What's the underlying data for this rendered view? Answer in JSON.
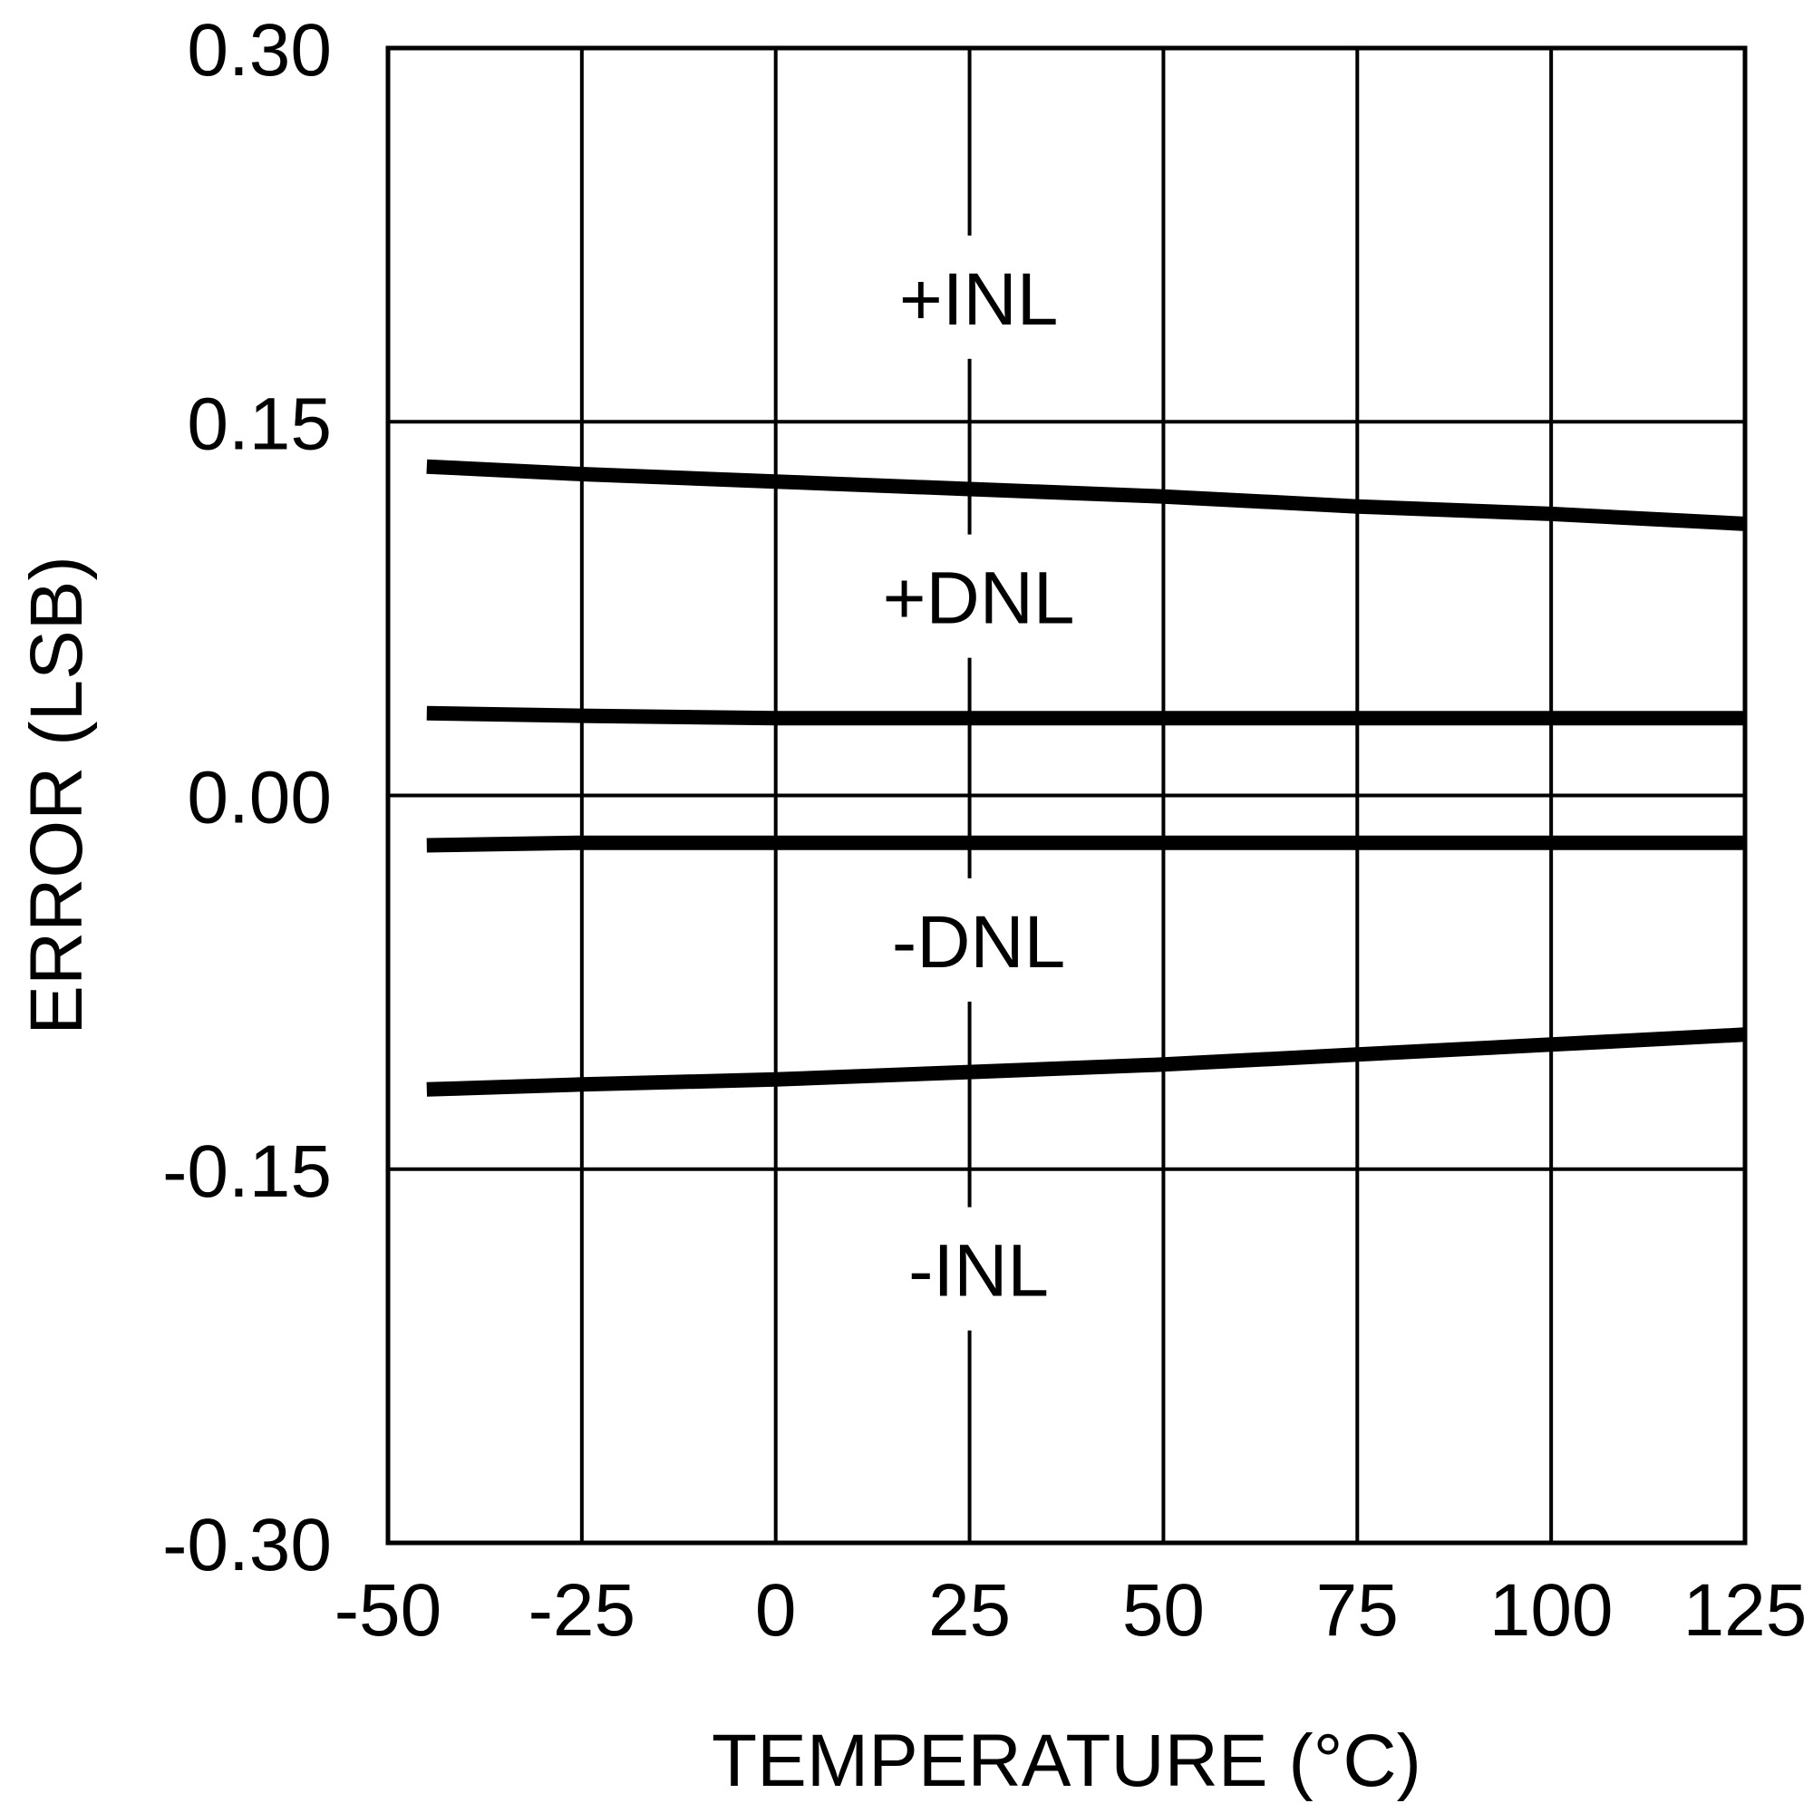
{
  "chart_data": {
    "type": "line",
    "title": "",
    "xlabel": "TEMPERATURE (°C)",
    "ylabel": "ERROR (LSB)",
    "xlim": [
      -50,
      125
    ],
    "ylim": [
      -0.3,
      0.3
    ],
    "x_ticks": [
      -50,
      -25,
      0,
      25,
      50,
      75,
      100,
      125
    ],
    "x_tick_labels": [
      "-50",
      "-25",
      "0",
      "25",
      "50",
      "75",
      "100",
      "125"
    ],
    "y_ticks": [
      0.3,
      0.15,
      0.0,
      -0.15,
      -0.3
    ],
    "y_tick_labels": [
      "0.30",
      "0.15",
      "0.00",
      "-0.15",
      "-0.30"
    ],
    "grid": true,
    "legend": "none",
    "series": [
      {
        "name": "+INL",
        "x": [
          -45,
          -25,
          0,
          25,
          50,
          75,
          100,
          125
        ],
        "y": [
          0.132,
          0.129,
          0.126,
          0.123,
          0.12,
          0.116,
          0.113,
          0.109
        ]
      },
      {
        "name": "+DNL",
        "x": [
          -45,
          -25,
          0,
          25,
          50,
          75,
          100,
          125
        ],
        "y": [
          0.033,
          0.032,
          0.031,
          0.031,
          0.031,
          0.031,
          0.031,
          0.031
        ]
      },
      {
        "name": "-DNL",
        "x": [
          -45,
          -25,
          0,
          25,
          50,
          75,
          100,
          125
        ],
        "y": [
          -0.02,
          -0.019,
          -0.019,
          -0.019,
          -0.019,
          -0.019,
          -0.019,
          -0.019
        ]
      },
      {
        "name": "-INL",
        "x": [
          -45,
          -25,
          0,
          25,
          50,
          75,
          100,
          125
        ],
        "y": [
          -0.118,
          -0.116,
          -0.114,
          -0.111,
          -0.108,
          -0.104,
          -0.1,
          -0.096
        ]
      }
    ],
    "annotations": [
      {
        "text": "+INL",
        "x": 25,
        "y": 0.2
      },
      {
        "text": "+DNL",
        "x": 25,
        "y": 0.08
      },
      {
        "text": "-DNL",
        "x": 25,
        "y": -0.058
      },
      {
        "text": "-INL",
        "x": 25,
        "y": -0.19
      }
    ],
    "colors": {
      "line": "#000000",
      "grid": "#000000",
      "background": "#ffffff"
    }
  }
}
